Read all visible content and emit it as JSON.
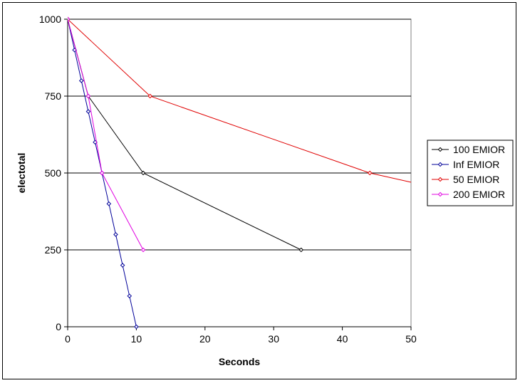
{
  "chart_data": {
    "type": "line",
    "title": "",
    "xlabel": "Seconds",
    "ylabel": "electotal",
    "xlim": [
      0,
      50
    ],
    "ylim": [
      0,
      1000
    ],
    "xticks": [
      0,
      10,
      20,
      30,
      40,
      50
    ],
    "yticks": [
      0,
      250,
      500,
      750,
      1000
    ],
    "grid": "horizontal major",
    "legend_position": "right",
    "series": [
      {
        "name": "100 EMIOR",
        "color": "#000000",
        "points": [
          [
            0,
            1000
          ],
          [
            3,
            750
          ],
          [
            11,
            500
          ],
          [
            34,
            250
          ]
        ]
      },
      {
        "name": "Inf EMIOR",
        "color": "#000099",
        "points": [
          [
            0,
            1000
          ],
          [
            1,
            900
          ],
          [
            2,
            800
          ],
          [
            3,
            700
          ],
          [
            4,
            600
          ],
          [
            5,
            500
          ],
          [
            6,
            400
          ],
          [
            7,
            300
          ],
          [
            8,
            200
          ],
          [
            9,
            100
          ],
          [
            10,
            0
          ]
        ]
      },
      {
        "name": "50 EMIOR",
        "color": "#e00000",
        "points": [
          [
            0,
            1000
          ],
          [
            12,
            750
          ],
          [
            44,
            500
          ],
          [
            50,
            470
          ]
        ]
      },
      {
        "name": "200 EMIOR",
        "color": "#e000e0",
        "points": [
          [
            0,
            1000
          ],
          [
            3,
            750
          ],
          [
            5,
            500
          ],
          [
            11,
            250
          ]
        ]
      }
    ]
  }
}
